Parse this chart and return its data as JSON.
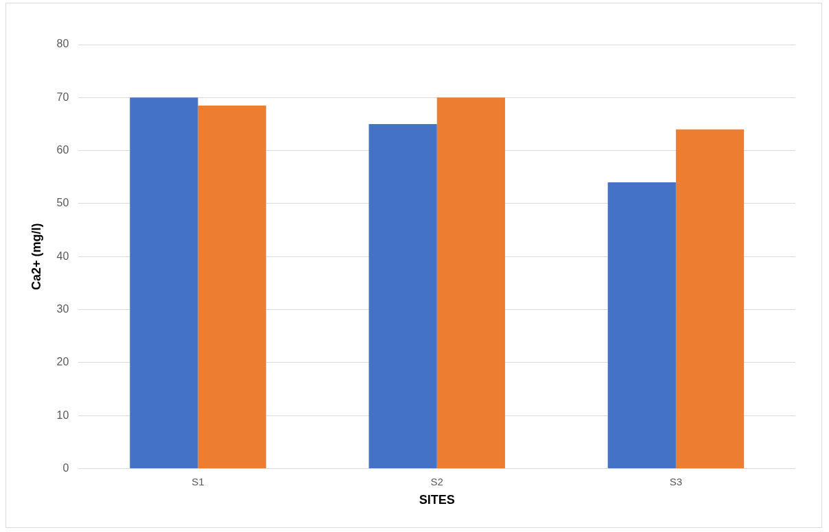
{
  "chart_data": {
    "type": "bar",
    "categories": [
      "S1",
      "S2",
      "S3"
    ],
    "series": [
      {
        "color": "#4472c4",
        "values": [
          70,
          65,
          54
        ]
      },
      {
        "color": "#ed7d31",
        "values": [
          68.5,
          70,
          64
        ]
      }
    ],
    "ylabel": "Ca2+ (mg/l)",
    "xlabel": "SITES",
    "ylim": [
      0,
      80
    ],
    "yticks": [
      0,
      10,
      20,
      30,
      40,
      50,
      60,
      70,
      80
    ],
    "grid": "y",
    "legend": false
  }
}
